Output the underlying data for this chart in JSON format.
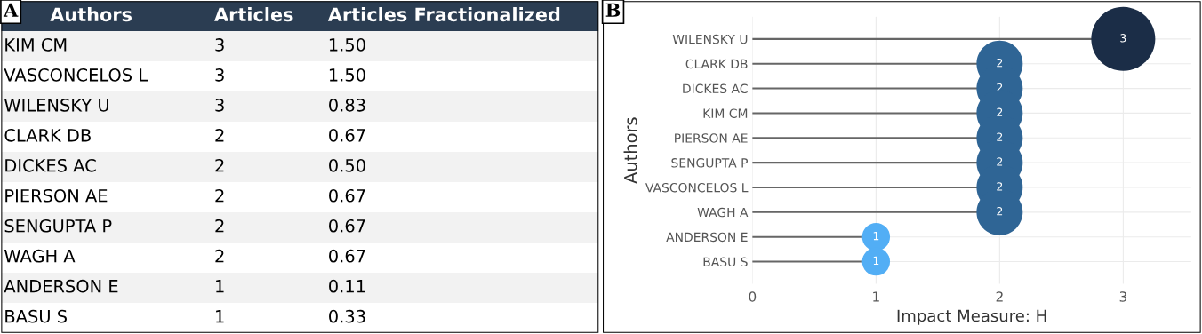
{
  "chart_data": [
    {
      "type": "other",
      "title": "A",
      "ylabel": "Authors",
      "data_labels": true,
      "categories": [
        "KIM CM",
        "VASCONCELOS L",
        "WILENSKY U",
        "CLARK DB",
        "DICKES AC",
        "PIERSON AE",
        "SENGUPTA P",
        "WAGH A",
        "ANDERSON E",
        "BASU S"
      ],
      "series": [
        {
          "name": "Articles",
          "values": [
            3,
            3,
            3,
            2,
            2,
            2,
            2,
            2,
            1,
            1
          ]
        },
        {
          "name": "Articles Fractionalized",
          "values": [
            1.5,
            1.5,
            0.83,
            0.67,
            0.5,
            0.67,
            0.67,
            0.67,
            0.11,
            0.33
          ],
          "value_labels": [
            "1.50",
            "1.50",
            "0.83",
            "0.67",
            "0.50",
            "0.67",
            "0.67",
            "0.67",
            "0.11",
            "0.33"
          ]
        }
      ]
    },
    {
      "type": "lollipop",
      "title": "B",
      "orientation": "horizontal",
      "xlabel": "Impact Measure: H",
      "ylabel": "Authors",
      "categories": [
        "WILENSKY U",
        "CLARK DB",
        "DICKES AC",
        "KIM CM",
        "PIERSON AE",
        "SENGUPTA P",
        "VASCONCELOS L",
        "WAGH A",
        "ANDERSON E",
        "BASU S"
      ],
      "values": [
        3,
        2,
        2,
        2,
        2,
        2,
        2,
        2,
        1,
        1
      ],
      "colors": [
        "#1b2d47",
        "#2f6595",
        "#2f6595",
        "#2f6595",
        "#2f6595",
        "#2f6595",
        "#2f6595",
        "#2f6595",
        "#52aef5",
        "#52aef5"
      ],
      "sizes": [
        1,
        0.52,
        0.52,
        0.52,
        0.52,
        0.52,
        0.52,
        0.52,
        0.19,
        0.19
      ],
      "xlim": [
        0,
        3.55
      ],
      "xticks": [
        0,
        1,
        2,
        3
      ],
      "grid": true,
      "data_labels": true
    }
  ]
}
